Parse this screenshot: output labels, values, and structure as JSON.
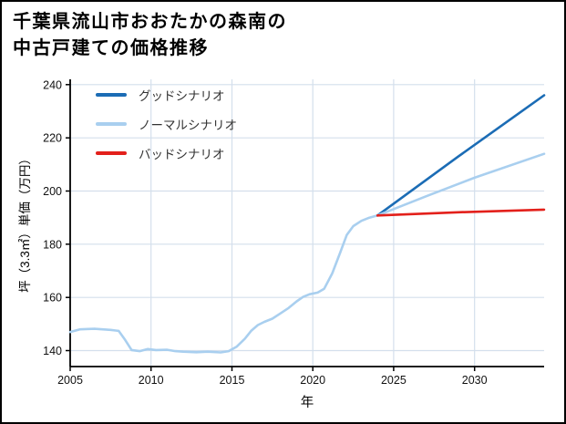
{
  "window": {
    "title_line1": "千葉県流山市おおたかの森南の",
    "title_line2": "中古戸建ての価格推移"
  },
  "chart_data": {
    "type": "line",
    "title": "千葉県流山市おおたかの森南の中古戸建ての価格推移",
    "xlabel": "年",
    "ylabel": "坪（3.3㎡）単価（万円）",
    "xlim": [
      2005,
      2034.3
    ],
    "ylim": [
      134,
      242
    ],
    "xticks": [
      2005,
      2010,
      2015,
      2020,
      2025,
      2030
    ],
    "yticks": [
      140,
      160,
      180,
      200,
      220,
      240
    ],
    "grid": true,
    "legend_position": "upper-left",
    "colors": {
      "good": "#1b6cb5",
      "normal": "#a9cfef",
      "bad": "#e3201b",
      "grid": "#d4dfec",
      "axis": "#000000",
      "tick_text": "#111111"
    },
    "legend": [
      {
        "label": "グッドシナリオ",
        "series": "good"
      },
      {
        "label": "ノーマルシナリオ",
        "series": "normal"
      },
      {
        "label": "バッドシナリオ",
        "series": "bad"
      }
    ],
    "series": [
      {
        "name": "historical",
        "color_key": "normal",
        "points": [
          [
            2005,
            147
          ],
          [
            2005.6,
            148
          ],
          [
            2006.5,
            148.2
          ],
          [
            2007.5,
            147.8
          ],
          [
            2008,
            147.4
          ],
          [
            2008.4,
            144
          ],
          [
            2008.8,
            140.2
          ],
          [
            2009.3,
            139.8
          ],
          [
            2009.8,
            140.6
          ],
          [
            2010.3,
            140.2
          ],
          [
            2011,
            140.3
          ],
          [
            2011.5,
            139.8
          ],
          [
            2012,
            139.6
          ],
          [
            2012.8,
            139.4
          ],
          [
            2013.5,
            139.6
          ],
          [
            2014.3,
            139.3
          ],
          [
            2014.8,
            139.8
          ],
          [
            2015.3,
            141.5
          ],
          [
            2015.8,
            144.5
          ],
          [
            2016.2,
            147.5
          ],
          [
            2016.6,
            149.6
          ],
          [
            2017,
            150.8
          ],
          [
            2017.5,
            152
          ],
          [
            2018,
            154
          ],
          [
            2018.5,
            156
          ],
          [
            2019,
            158.5
          ],
          [
            2019.4,
            160.2
          ],
          [
            2019.8,
            161.2
          ],
          [
            2020.3,
            161.8
          ],
          [
            2020.7,
            163.2
          ],
          [
            2021.2,
            169
          ],
          [
            2021.7,
            177
          ],
          [
            2022.1,
            183.5
          ],
          [
            2022.5,
            186.8
          ],
          [
            2023,
            188.8
          ],
          [
            2023.5,
            190
          ],
          [
            2024,
            190.8
          ]
        ]
      },
      {
        "name": "good",
        "color_key": "good",
        "points": [
          [
            2024,
            190.8
          ],
          [
            2029,
            213
          ],
          [
            2034.3,
            236
          ]
        ]
      },
      {
        "name": "normal",
        "color_key": "normal",
        "points": [
          [
            2024,
            190.8
          ],
          [
            2027,
            198
          ],
          [
            2030,
            205
          ],
          [
            2034.3,
            214
          ]
        ]
      },
      {
        "name": "bad",
        "color_key": "bad",
        "points": [
          [
            2024,
            190.8
          ],
          [
            2029,
            192
          ],
          [
            2034.3,
            193
          ]
        ]
      }
    ]
  }
}
